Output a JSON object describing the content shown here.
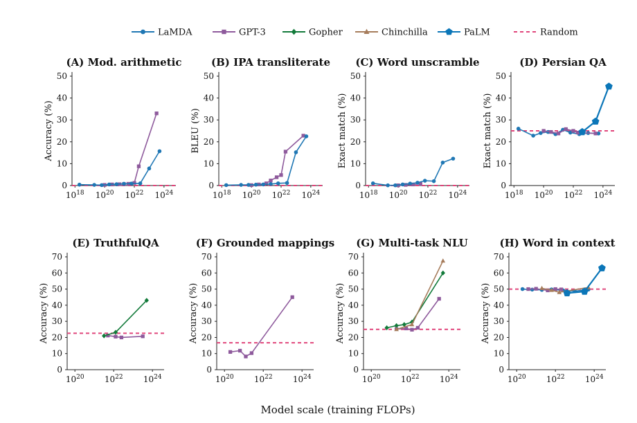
{
  "figure": {
    "xlabel": "Model scale (training FLOPs)"
  },
  "legend": [
    {
      "name": "LaMDA",
      "color": "#1f77b4",
      "marker": "circle",
      "dashed": false
    },
    {
      "name": "GPT-3",
      "color": "#8e5a9c",
      "marker": "square",
      "dashed": false
    },
    {
      "name": "Gopher",
      "color": "#127a3a",
      "marker": "diamond",
      "dashed": false
    },
    {
      "name": "Chinchilla",
      "color": "#a67c5b",
      "marker": "triangle",
      "dashed": false
    },
    {
      "name": "PaLM",
      "color": "#0b76b8",
      "marker": "pentagon",
      "dashed": false
    },
    {
      "name": "Random",
      "color": "#e0457b",
      "marker": "none",
      "dashed": true
    }
  ],
  "chart_data": [
    {
      "type": "line",
      "title": "(A) Mod. arithmetic",
      "ylabel": "Accuracy (%)",
      "ylim": [
        0,
        50
      ],
      "yticks": [
        0,
        10,
        20,
        30,
        40,
        50
      ],
      "xlim_exp": [
        17.8,
        24.8
      ],
      "xticks_exp": [
        18,
        20,
        22,
        24
      ],
      "random": 0,
      "series": [
        {
          "name": "GPT-3",
          "x_exp": [
            20.0,
            20.5,
            21.0,
            21.3,
            21.6,
            22.0,
            22.3,
            23.5
          ],
          "y": [
            0.3,
            0.5,
            0.6,
            0.7,
            0.8,
            1.2,
            8.8,
            33.0
          ]
        },
        {
          "name": "LaMDA",
          "x_exp": [
            18.3,
            19.3,
            19.8,
            20.3,
            20.8,
            21.3,
            21.8,
            22.4,
            23.0,
            23.7
          ],
          "y": [
            0.4,
            0.3,
            0.2,
            0.5,
            0.6,
            0.8,
            0.9,
            1.0,
            7.8,
            15.7
          ]
        }
      ]
    },
    {
      "type": "line",
      "title": "(B) IPA transliterate",
      "ylabel": "BLEU (%)",
      "ylim": [
        0,
        50
      ],
      "yticks": [
        0,
        10,
        20,
        30,
        40,
        50
      ],
      "xlim_exp": [
        17.8,
        24.8
      ],
      "xticks_exp": [
        18,
        20,
        22,
        24
      ],
      "random": 0,
      "series": [
        {
          "name": "GPT-3",
          "x_exp": [
            20.0,
            20.5,
            21.0,
            21.3,
            21.7,
            22.0,
            22.3,
            23.5
          ],
          "y": [
            0.2,
            0.5,
            1.0,
            2.3,
            3.8,
            4.8,
            15.5,
            22.8
          ]
        },
        {
          "name": "LaMDA",
          "x_exp": [
            18.3,
            19.3,
            19.8,
            20.3,
            20.8,
            21.3,
            21.8,
            22.4,
            23.0,
            23.7
          ],
          "y": [
            0.2,
            0.3,
            0.3,
            0.4,
            0.5,
            0.7,
            1.0,
            1.2,
            15.2,
            22.5
          ]
        }
      ]
    },
    {
      "type": "line",
      "title": "(C) Word unscramble",
      "ylabel": "Exact match (%)",
      "ylim": [
        0,
        50
      ],
      "yticks": [
        0,
        10,
        20,
        30,
        40,
        50
      ],
      "xlim_exp": [
        17.8,
        24.8
      ],
      "xticks_exp": [
        18,
        20,
        22,
        24
      ],
      "random": 0,
      "series": [
        {
          "name": "GPT-3",
          "x_exp": [
            20.0,
            20.5,
            21.0,
            21.5
          ],
          "y": [
            0.1,
            0.3,
            0.5,
            0.8
          ]
        },
        {
          "name": "LaMDA",
          "x_exp": [
            18.3,
            19.3,
            19.8,
            20.3,
            20.8,
            21.3,
            21.8,
            22.4,
            23.0,
            23.7
          ],
          "y": [
            1.0,
            0.1,
            0.1,
            0.5,
            0.9,
            1.3,
            2.2,
            2.0,
            10.5,
            12.3
          ]
        }
      ]
    },
    {
      "type": "line",
      "title": "(D) Persian QA",
      "ylabel": "Exact match (%)",
      "ylim": [
        0,
        50
      ],
      "yticks": [
        0,
        10,
        20,
        30,
        40,
        50
      ],
      "xlim_exp": [
        17.8,
        24.8
      ],
      "xticks_exp": [
        18,
        20,
        22,
        24
      ],
      "random": 25,
      "series": [
        {
          "name": "LaMDA",
          "x_exp": [
            18.3,
            19.3,
            19.8,
            20.3,
            20.8,
            21.3,
            21.8,
            22.4,
            23.0,
            23.7
          ],
          "y": [
            26.0,
            22.8,
            24.0,
            24.5,
            23.5,
            25.5,
            24.2,
            23.5,
            24.0,
            23.8
          ]
        },
        {
          "name": "GPT-3",
          "x_exp": [
            20.0,
            20.5,
            21.0,
            21.5,
            22.0,
            22.3,
            23.5
          ],
          "y": [
            25.0,
            24.5,
            23.8,
            25.8,
            25.0,
            24.2,
            23.8
          ]
        },
        {
          "name": "PaLM",
          "x_exp": [
            22.6,
            23.5,
            24.4
          ],
          "y": [
            24.5,
            29.3,
            45.3
          ]
        }
      ]
    },
    {
      "type": "line",
      "title": "(E) TruthfulQA",
      "ylabel": "Accuracy (%)",
      "ylim": [
        0,
        70
      ],
      "yticks": [
        0,
        10,
        20,
        30,
        40,
        50,
        60,
        70
      ],
      "xlim_exp": [
        19.6,
        24.6
      ],
      "xticks_exp": [
        20,
        22,
        24
      ],
      "random": 22.6,
      "series": [
        {
          "name": "GPT-3",
          "x_exp": [
            21.7,
            22.1,
            22.4,
            23.5
          ],
          "y": [
            21.2,
            20.5,
            20.0,
            20.7
          ]
        },
        {
          "name": "Gopher",
          "x_exp": [
            21.5,
            22.1,
            23.7
          ],
          "y": [
            21.0,
            23.2,
            43.0
          ]
        }
      ]
    },
    {
      "type": "line",
      "title": "(F) Grounded mappings",
      "ylabel": "Accuracy (%)",
      "ylim": [
        0,
        70
      ],
      "yticks": [
        0,
        10,
        20,
        30,
        40,
        50,
        60,
        70
      ],
      "xlim_exp": [
        19.6,
        24.6
      ],
      "xticks_exp": [
        20,
        22,
        24
      ],
      "random": 16.7,
      "series": [
        {
          "name": "GPT-3",
          "x_exp": [
            20.3,
            20.8,
            21.1,
            21.4,
            23.5
          ],
          "y": [
            11.0,
            11.8,
            8.2,
            10.3,
            45.0
          ]
        }
      ]
    },
    {
      "type": "line",
      "title": "(G) Multi-task NLU",
      "ylabel": "Accuracy (%)",
      "ylim": [
        0,
        70
      ],
      "yticks": [
        0,
        10,
        20,
        30,
        40,
        50,
        60,
        70
      ],
      "xlim_exp": [
        19.6,
        24.6
      ],
      "xticks_exp": [
        20,
        22,
        24
      ],
      "random": 25,
      "series": [
        {
          "name": "GPT-3",
          "x_exp": [
            21.3,
            21.8,
            22.1,
            22.4,
            23.5
          ],
          "y": [
            25.2,
            25.6,
            24.8,
            26.0,
            44.0
          ]
        },
        {
          "name": "Gopher",
          "x_exp": [
            20.8,
            21.3,
            21.7,
            22.1,
            23.7
          ],
          "y": [
            26.0,
            27.3,
            28.0,
            29.5,
            60.0
          ]
        },
        {
          "name": "Chinchilla",
          "x_exp": [
            21.3,
            22.1,
            23.7
          ],
          "y": [
            25.0,
            28.0,
            67.5
          ]
        }
      ]
    },
    {
      "type": "line",
      "title": "(H) Word in context",
      "ylabel": "Accuracy (%)",
      "ylim": [
        0,
        70
      ],
      "yticks": [
        0,
        10,
        20,
        30,
        40,
        50,
        60,
        70
      ],
      "xlim_exp": [
        19.6,
        24.6
      ],
      "xticks_exp": [
        20,
        22,
        24
      ],
      "random": 50,
      "series": [
        {
          "name": "LaMDA",
          "x_exp": [
            20.3,
            20.8,
            21.3,
            21.8,
            22.4,
            23.0,
            23.7
          ],
          "y": [
            50.0,
            49.7,
            49.5,
            49.8,
            49.2,
            48.7,
            49.7
          ]
        },
        {
          "name": "GPT-3",
          "x_exp": [
            20.6,
            21.0,
            21.6,
            22.0,
            22.3
          ],
          "y": [
            50.0,
            50.2,
            49.2,
            50.0,
            49.8
          ]
        },
        {
          "name": "Chinchilla",
          "x_exp": [
            21.3,
            21.8,
            22.2,
            23.7
          ],
          "y": [
            50.5,
            49.3,
            48.0,
            51.0
          ]
        },
        {
          "name": "PaLM",
          "x_exp": [
            22.6,
            23.5,
            24.4
          ],
          "y": [
            47.5,
            48.5,
            63.0
          ]
        }
      ]
    }
  ]
}
